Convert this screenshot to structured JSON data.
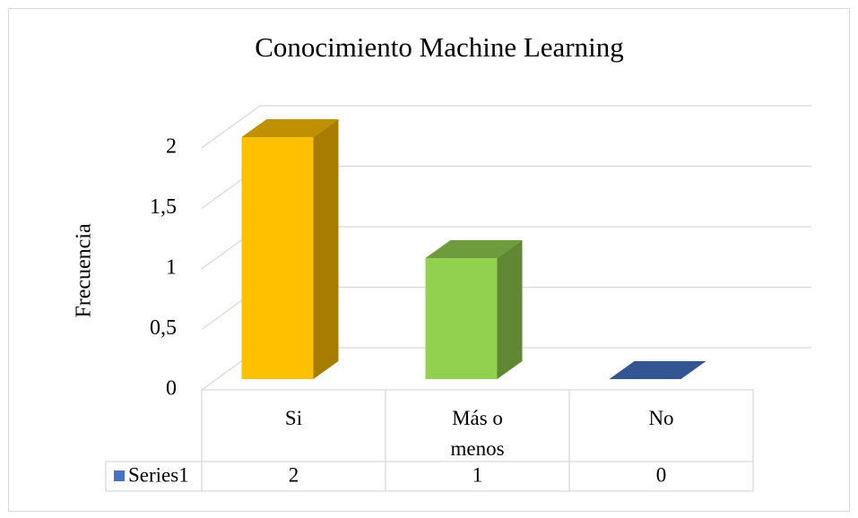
{
  "chart_data": {
    "type": "bar3d",
    "title": "Conocimiento Machine Learning",
    "y_label": "Frecuencia",
    "categories": [
      "Si",
      "Más o menos",
      "No"
    ],
    "series": [
      {
        "name": "Series1",
        "color": "#4472C4",
        "values": [
          2,
          1,
          0
        ]
      }
    ],
    "point_colors": [
      "#FFC000",
      "#92D050",
      "#4472C4"
    ],
    "ylim": [
      0,
      2
    ],
    "yticks": [
      0,
      {
        "value": 0.5,
        "label": "0,5"
      },
      1,
      {
        "value": 1.5,
        "label": "1,5"
      },
      2
    ],
    "grid": true,
    "data_table": true
  }
}
